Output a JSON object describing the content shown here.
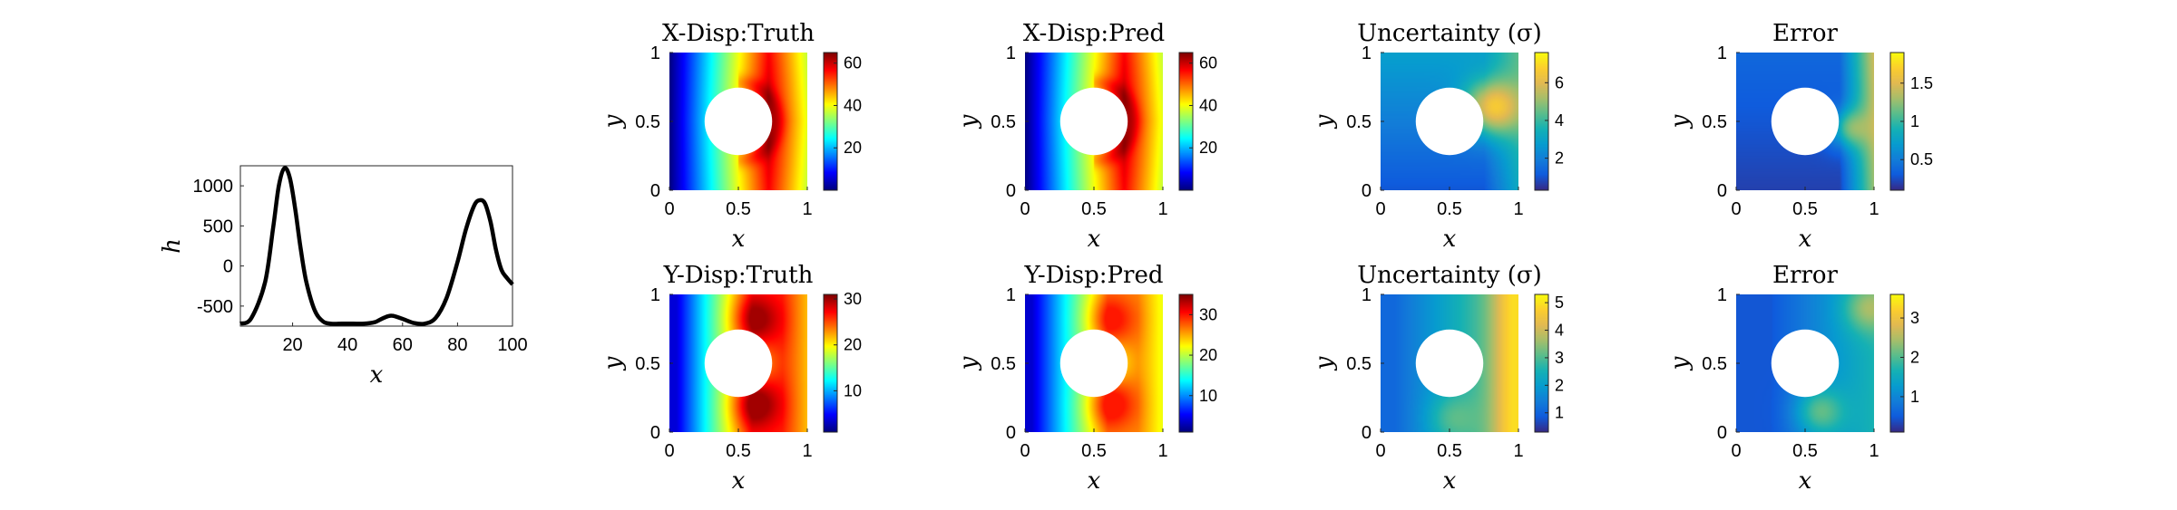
{
  "chart_data": [
    {
      "type": "line",
      "xlabel": "x",
      "ylabel": "h",
      "xlim": [
        1,
        100
      ],
      "ylim": [
        -750,
        1250
      ],
      "xticks": [
        20,
        40,
        60,
        80,
        100
      ],
      "yticks": [
        -500,
        0,
        500,
        1000
      ],
      "line_color": "#000000",
      "x": [
        1,
        5,
        10,
        13,
        15,
        17,
        19,
        21,
        23,
        25,
        28,
        31,
        34,
        38,
        42,
        46,
        50,
        53,
        56,
        60,
        64,
        68,
        72,
        76,
        80,
        83,
        86,
        88,
        90,
        92,
        94,
        96,
        98,
        100
      ],
      "y": [
        -720,
        -650,
        -200,
        500,
        1000,
        1220,
        1100,
        700,
        200,
        -200,
        -550,
        -690,
        -720,
        -720,
        -720,
        -720,
        -700,
        -650,
        -620,
        -660,
        -710,
        -720,
        -650,
        -400,
        50,
        450,
        750,
        820,
        780,
        550,
        200,
        -50,
        -150,
        -230
      ]
    },
    {
      "type": "heatmap",
      "title": "X-Disp:Truth",
      "xlabel": "x",
      "ylabel": "y",
      "xlim": [
        0,
        1
      ],
      "ylim": [
        0,
        1
      ],
      "xticks": [
        0,
        0.5,
        1
      ],
      "yticks": [
        0,
        0.5,
        1
      ],
      "colormap": "jet",
      "clim": [
        0,
        65
      ],
      "cticks": [
        20,
        40,
        60
      ],
      "hole": {
        "center": [
          0.5,
          0.5
        ],
        "radius": 0.25
      },
      "field": {
        "kind": "x",
        "max": 65,
        "knee": 0.72
      }
    },
    {
      "type": "heatmap",
      "title": "X-Disp:Pred",
      "xlabel": "x",
      "ylabel": "y",
      "xlim": [
        0,
        1
      ],
      "ylim": [
        0,
        1
      ],
      "xticks": [
        0,
        0.5,
        1
      ],
      "yticks": [
        0,
        0.5,
        1
      ],
      "colormap": "jet",
      "clim": [
        0,
        65
      ],
      "cticks": [
        20,
        40,
        60
      ],
      "hole": {
        "center": [
          0.5,
          0.5
        ],
        "radius": 0.25
      },
      "field": {
        "kind": "x",
        "max": 65,
        "knee": 0.72
      }
    },
    {
      "type": "heatmap",
      "title": "Uncertainty (σ)",
      "xlabel": "x",
      "ylabel": "y",
      "xlim": [
        0,
        1
      ],
      "ylim": [
        0,
        1
      ],
      "xticks": [
        0,
        0.5,
        1
      ],
      "yticks": [
        0,
        0.5,
        1
      ],
      "colormap": "parula",
      "clim": [
        0.3,
        7.6
      ],
      "cticks": [
        2,
        4,
        6
      ],
      "hole": {
        "center": [
          0.5,
          0.5
        ],
        "radius": 0.25
      },
      "field": {
        "kind": "unc",
        "max": 7.6
      }
    },
    {
      "type": "heatmap",
      "title": "Error",
      "xlabel": "x",
      "ylabel": "y",
      "xlim": [
        0,
        1
      ],
      "ylim": [
        0,
        1
      ],
      "xticks": [
        0,
        0.5,
        1
      ],
      "yticks": [
        0,
        0.5,
        1
      ],
      "colormap": "parula",
      "clim": [
        0.1,
        1.9
      ],
      "cticks": [
        0.5,
        1,
        1.5
      ],
      "hole": {
        "center": [
          0.5,
          0.5
        ],
        "radius": 0.25
      },
      "field": {
        "kind": "err",
        "max": 1.9
      }
    },
    {
      "type": "heatmap",
      "title": "Y-Disp:Truth",
      "xlabel": "x",
      "ylabel": "y",
      "xlim": [
        0,
        1
      ],
      "ylim": [
        0,
        1
      ],
      "xticks": [
        0,
        0.5,
        1
      ],
      "yticks": [
        0,
        0.5,
        1
      ],
      "colormap": "jet",
      "clim": [
        1,
        31
      ],
      "cticks": [
        10,
        20,
        30
      ],
      "hole": {
        "center": [
          0.5,
          0.5
        ],
        "radius": 0.25
      },
      "field": {
        "kind": "y",
        "max": 31
      }
    },
    {
      "type": "heatmap",
      "title": "Y-Disp:Pred",
      "xlabel": "x",
      "ylabel": "y",
      "xlim": [
        0,
        1
      ],
      "ylim": [
        0,
        1
      ],
      "xticks": [
        0,
        0.5,
        1
      ],
      "yticks": [
        0,
        0.5,
        1
      ],
      "colormap": "jet",
      "clim": [
        1,
        35
      ],
      "cticks": [
        10,
        20,
        30
      ],
      "hole": {
        "center": [
          0.5,
          0.5
        ],
        "radius": 0.25
      },
      "field": {
        "kind": "y",
        "max": 34
      }
    },
    {
      "type": "heatmap",
      "title": "Uncertainty (σ)",
      "xlabel": "x",
      "ylabel": "y",
      "xlim": [
        0,
        1
      ],
      "ylim": [
        0,
        1
      ],
      "xticks": [
        0,
        0.5,
        1
      ],
      "yticks": [
        0,
        0.5,
        1
      ],
      "colormap": "parula",
      "clim": [
        0.3,
        5.3
      ],
      "cticks": [
        1,
        2,
        3,
        4,
        5
      ],
      "hole": {
        "center": [
          0.5,
          0.5
        ],
        "radius": 0.25
      },
      "field": {
        "kind": "unc2",
        "max": 5.3
      }
    },
    {
      "type": "heatmap",
      "title": "Error",
      "xlabel": "x",
      "ylabel": "y",
      "xlim": [
        0,
        1
      ],
      "ylim": [
        0,
        1
      ],
      "xticks": [
        0,
        0.5,
        1
      ],
      "yticks": [
        0,
        0.5,
        1
      ],
      "colormap": "parula",
      "clim": [
        0.1,
        3.6
      ],
      "cticks": [
        1,
        2,
        3
      ],
      "hole": {
        "center": [
          0.5,
          0.5
        ],
        "radius": 0.25
      },
      "field": {
        "kind": "err2",
        "max": 3.6
      }
    }
  ]
}
